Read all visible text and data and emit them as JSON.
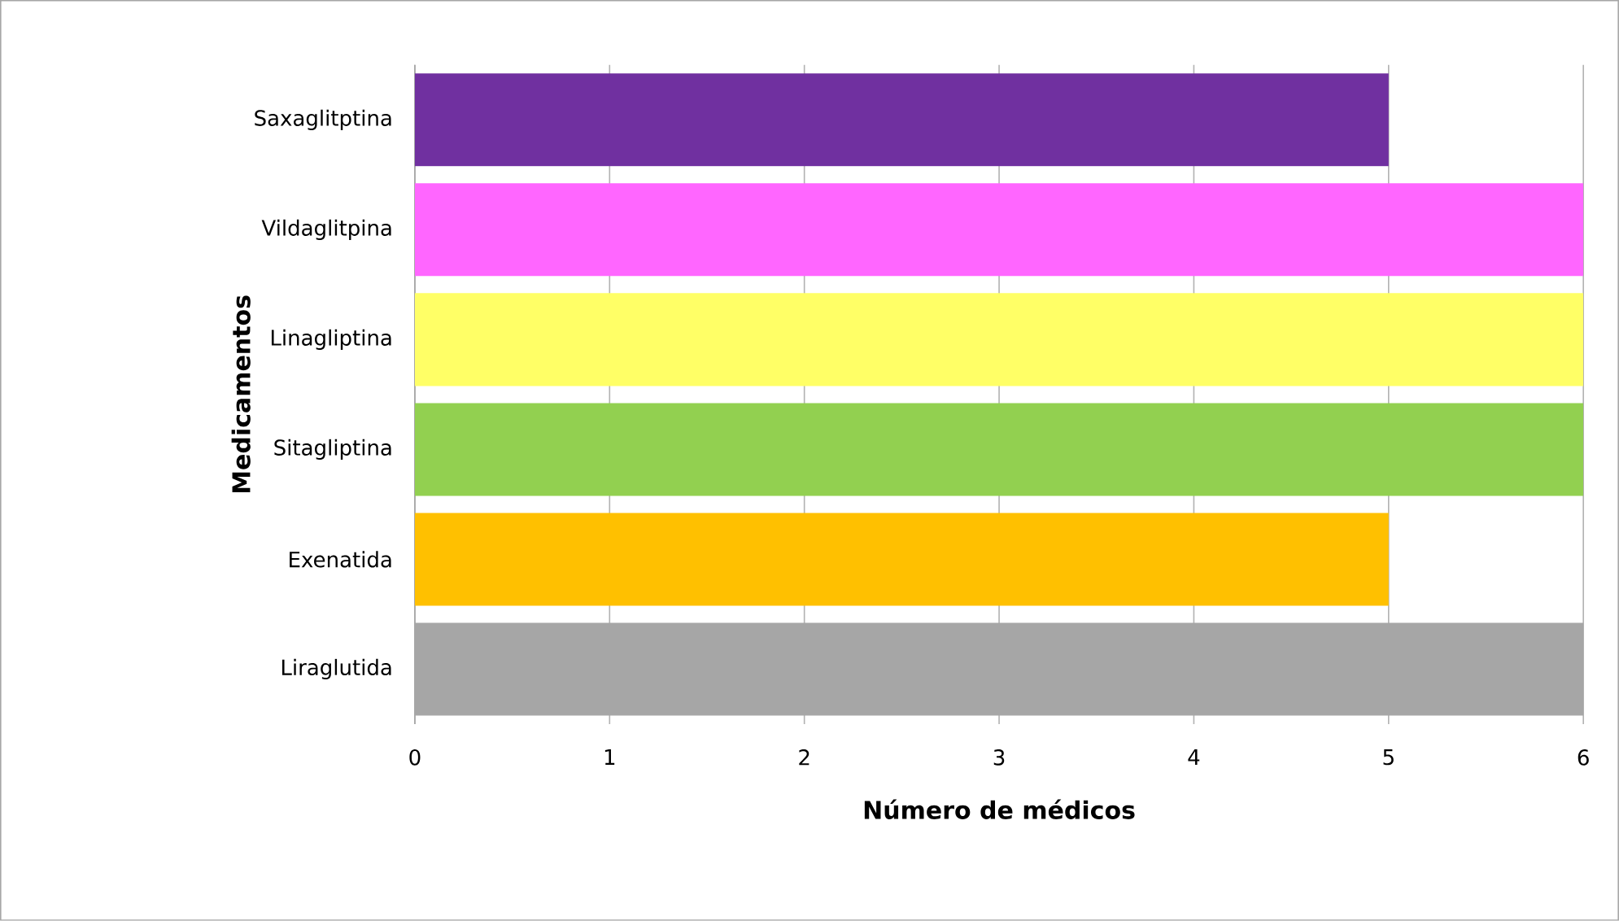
{
  "chart_data": {
    "type": "bar",
    "orientation": "horizontal",
    "xlabel": "Número de médicos",
    "ylabel": "Medicamentos",
    "categories": [
      "Saxaglitptina",
      "Vildaglitpina",
      "Linagliptina",
      "Sitagliptina",
      "Exenatida",
      "Liraglutida"
    ],
    "values": [
      5,
      6,
      6,
      6,
      5,
      6
    ],
    "colors": [
      "#7030a0",
      "#ff66ff",
      "#ffff66",
      "#92d050",
      "#ffc000",
      "#a6a6a6"
    ],
    "xlim": [
      0,
      6
    ],
    "xticks": [
      0,
      1,
      2,
      3,
      4,
      5,
      6
    ],
    "grid": "x"
  }
}
